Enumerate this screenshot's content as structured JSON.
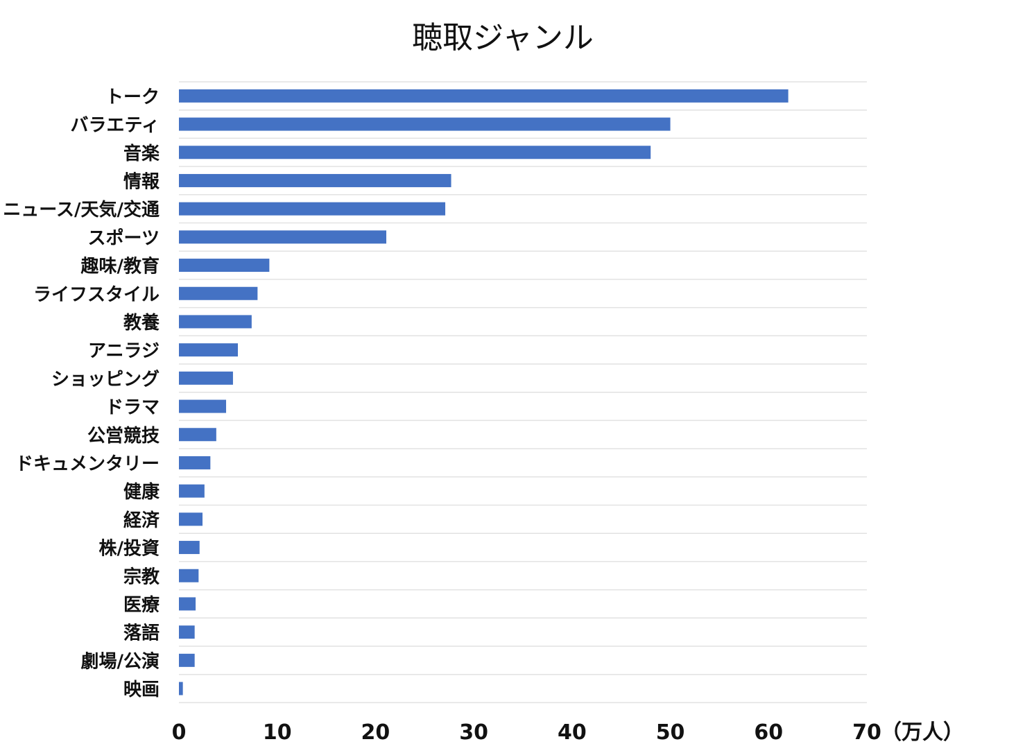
{
  "chart_data": {
    "type": "bar",
    "orientation": "horizontal",
    "title": "聴取ジャンル",
    "unit": "（万人）",
    "categories": [
      "トーク",
      "バラエティ",
      "音楽",
      "情報",
      "ニュース/天気/交通",
      "スポーツ",
      "趣味/教育",
      "ライフスタイル",
      "教養",
      "アニラジ",
      "ショッピング",
      "ドラマ",
      "公営競技",
      "ドキュメンタリー",
      "健康",
      "経済",
      "株/投資",
      "宗教",
      "医療",
      "落語",
      "劇場/公演",
      "映画"
    ],
    "values": [
      62,
      50,
      48,
      27.7,
      27.1,
      21.1,
      9.2,
      8,
      7.4,
      6,
      5.5,
      4.8,
      3.8,
      3.2,
      2.6,
      2.4,
      2.1,
      2,
      1.7,
      1.6,
      1.6,
      0.4
    ],
    "xlim": [
      0,
      70
    ],
    "xticks": [
      0,
      10,
      20,
      30,
      40,
      50,
      60,
      70
    ],
    "bar_color": "#4472c4",
    "grid": "horizontal",
    "legend": "none"
  }
}
